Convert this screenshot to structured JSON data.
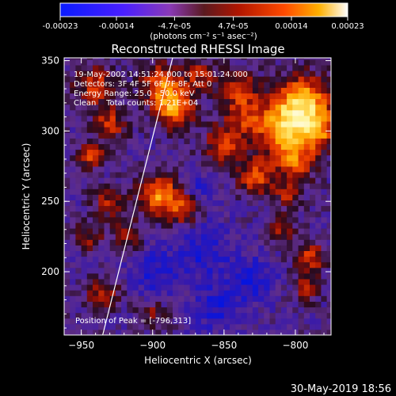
{
  "colorbar": {
    "tick_labels": [
      "-0.00023",
      "-0.00014",
      "-4.7e-05",
      "4.7e-05",
      "0.00014",
      "0.00023"
    ],
    "tick_values": [
      -0.00023,
      -0.00014,
      -4.7e-05,
      4.7e-05,
      0.00014,
      0.00023
    ],
    "range": [
      -0.00023,
      0.00023
    ],
    "unit_label": "(photons cm⁻² s⁻¹ asec⁻²)"
  },
  "annotations": {
    "time_range": "19-May-2002 14:51:24.000 to 15:01:24.000",
    "detectors": "Detectors: 3F 4F 5F 6F 7F 8F, Att 0",
    "energy_range": "Energy Range: 25.0 - 50.0 keV",
    "clean_counts": "Clean    Total counts: 1.21E+04",
    "peak_position": "Position of Peak = [-796,313]"
  },
  "footer": {
    "timestamp": "30-May-2019 18:56"
  },
  "chart_data": {
    "type": "heatmap",
    "title": "Reconstructed RHESSI Image",
    "xlabel": "Heliocentric X (arcsec)",
    "ylabel": "Heliocentric Y (arcsec)",
    "xlim": [
      -962,
      -775
    ],
    "ylim": [
      155,
      352
    ],
    "xticks": [
      -950,
      -900,
      -850,
      -800
    ],
    "yticks": [
      200,
      250,
      300,
      350
    ],
    "xtick_labels": [
      "−950",
      "−900",
      "−850",
      "−800"
    ],
    "ytick_labels": [
      "200",
      "250",
      "300",
      "350"
    ],
    "peak": [
      -796,
      313
    ],
    "limb_line": [
      [
        -935,
        155
      ],
      [
        -886,
        352
      ]
    ],
    "value_range": [
      -0.00023,
      0.00023
    ]
  }
}
